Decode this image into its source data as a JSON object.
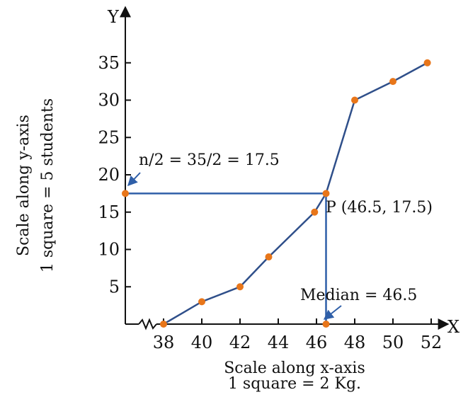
{
  "chart_data": {
    "type": "line",
    "x": [
      38,
      40,
      42,
      43.5,
      45.9,
      46.5,
      48,
      50,
      51.8
    ],
    "y": [
      0,
      3,
      5,
      9,
      15,
      17.5,
      30,
      32.5,
      35
    ],
    "xlim": [
      36,
      53
    ],
    "ylim": [
      0,
      40
    ],
    "xticks": [
      "38",
      "40",
      "42",
      "44",
      "46",
      "48",
      "50",
      "52"
    ],
    "yticks": [
      "5",
      "10",
      "15",
      "20",
      "25",
      "30",
      "35"
    ],
    "x_axis_letter": "X",
    "y_axis_letter": "Y",
    "xlabel": [
      "Scale along x-axis",
      "1 square = 2 Kg."
    ],
    "ylabel": [
      "Scale along y-axis",
      "1 square = 5 students"
    ],
    "annotations": {
      "half_n": "n/2 = 35/2 = 17.5",
      "point_p": "P (46.5, 17.5)",
      "median": "Median = 46.5"
    },
    "median_point": {
      "x": 46.5,
      "y": 17.5
    },
    "grid": false,
    "line_color": "#2f4f8a",
    "point_color": "#e8761a",
    "guide_color": "#2f5fa8"
  }
}
